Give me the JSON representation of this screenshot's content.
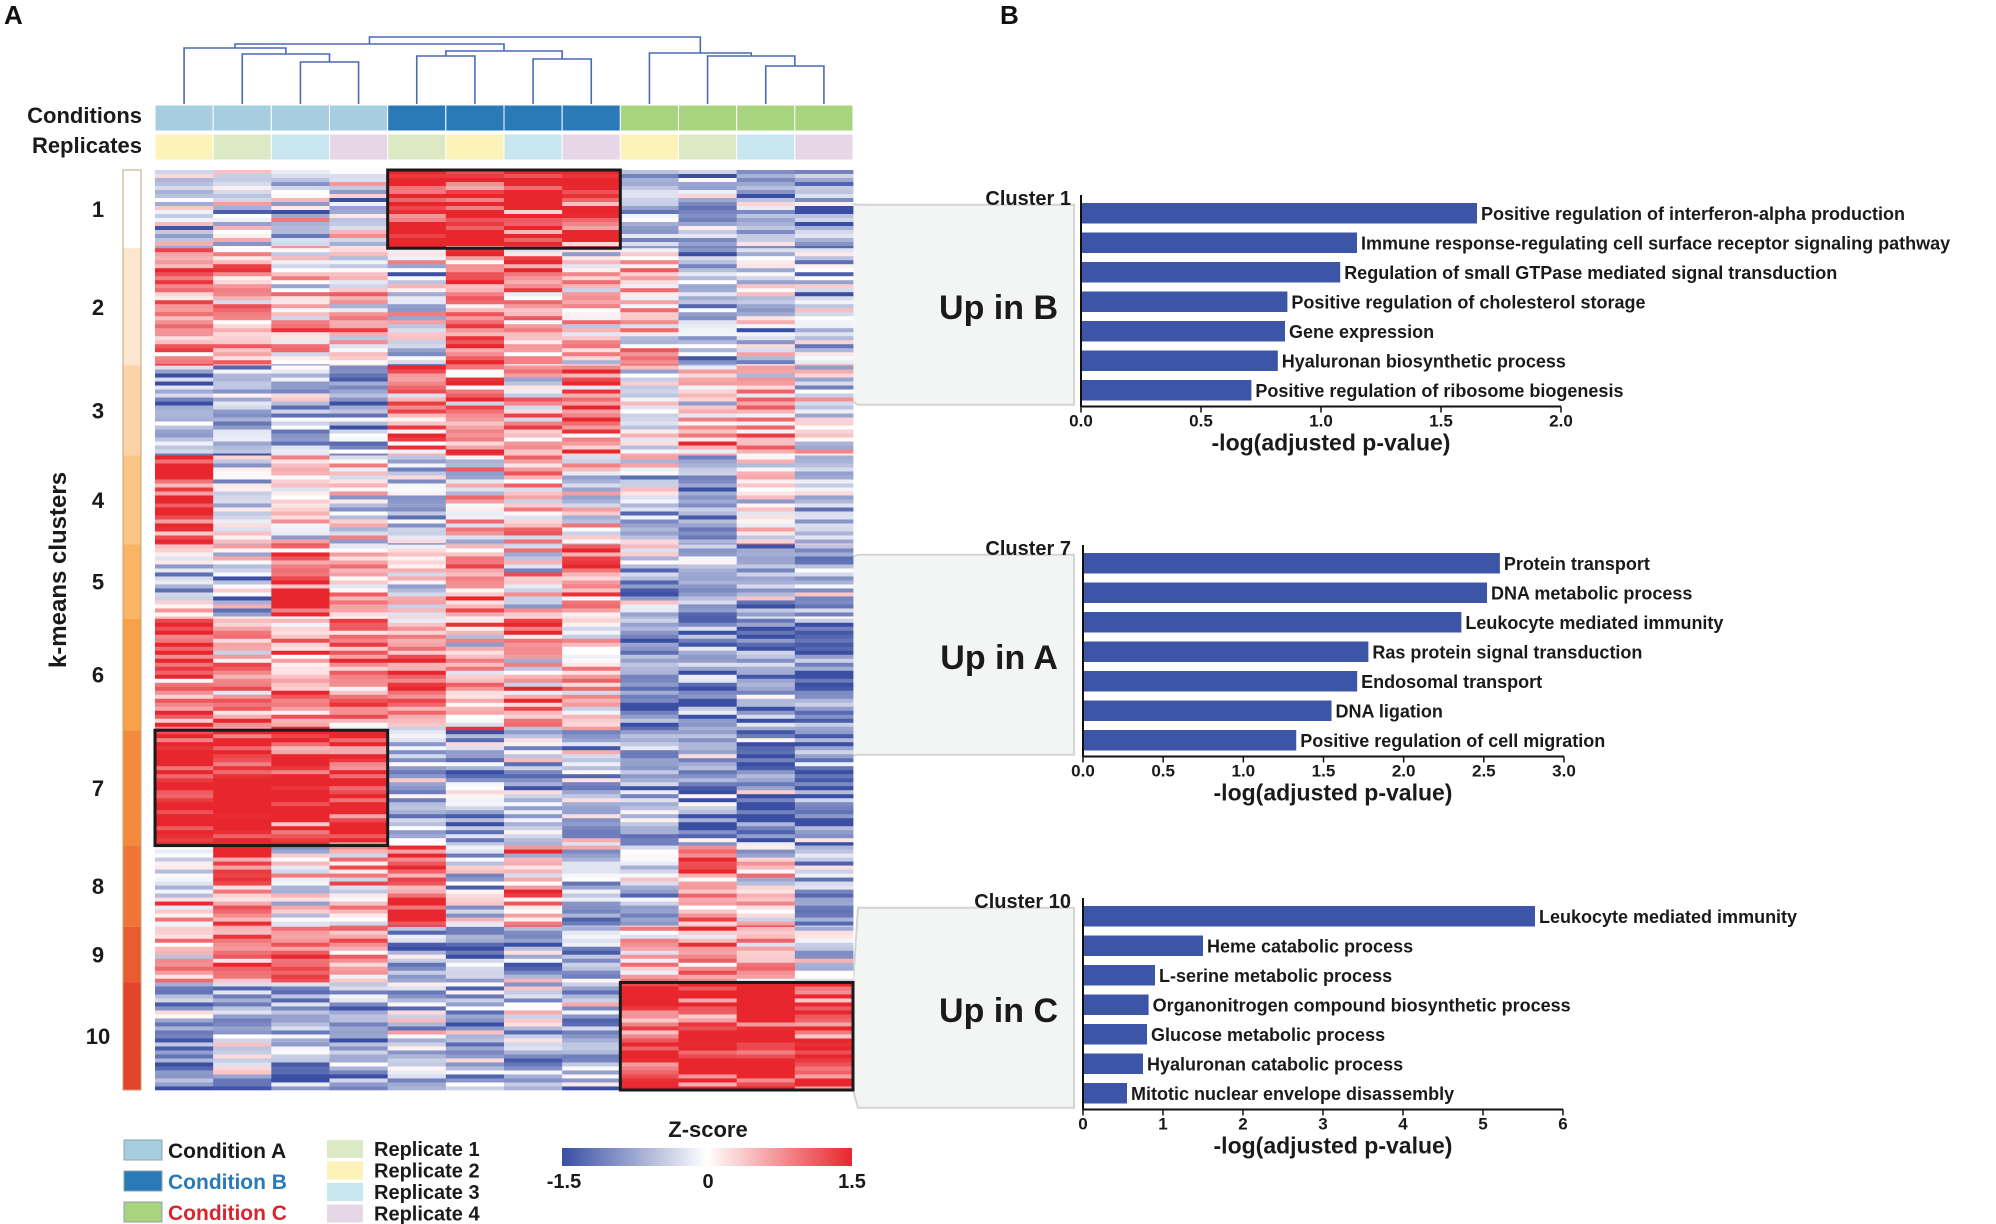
{
  "panels": {
    "a": "A",
    "b": "B"
  },
  "heatmap": {
    "conditions_label": "Conditions",
    "replicates_label": "Replicates",
    "y_axis_label": "k-means clusters",
    "cluster_labels": [
      "1",
      "2",
      "3",
      "4",
      "5",
      "6",
      "7",
      "8",
      "9",
      "10"
    ],
    "cluster_relative_heights": [
      80,
      120,
      92,
      91,
      76,
      114,
      118,
      83,
      57,
      110
    ],
    "cluster_colors": [
      "#ffffff",
      "#fde6cf",
      "#fcd3a7",
      "#fbc586",
      "#f9b464",
      "#f7a248",
      "#f28c3c",
      "#ee7537",
      "#e95c31",
      "#e3442b"
    ],
    "column_conditions": [
      "A",
      "A",
      "A",
      "A",
      "B",
      "B",
      "B",
      "B",
      "C",
      "C",
      "C",
      "C"
    ],
    "column_replicates": [
      2,
      1,
      3,
      4,
      1,
      2,
      3,
      4,
      2,
      1,
      3,
      4
    ],
    "cluster_pattern": [
      [
        -0.3,
        -0.3,
        -0.3,
        -0.3,
        1.0,
        1.0,
        1.0,
        1.0,
        -0.4,
        -0.4,
        -0.4,
        -0.5
      ],
      [
        0.7,
        0.3,
        0.1,
        0.4,
        -0.2,
        0.6,
        0.4,
        0.3,
        0.3,
        -0.3,
        -0.2,
        -0.3
      ],
      [
        -0.4,
        -0.5,
        -0.3,
        -0.5,
        0.4,
        0.5,
        0.3,
        0.5,
        -0.1,
        0.3,
        0.2,
        -0.2
      ],
      [
        0.9,
        -0.2,
        0.3,
        0.0,
        -0.3,
        0.0,
        0.3,
        -0.1,
        -0.3,
        -0.6,
        0.1,
        -0.3
      ],
      [
        -0.2,
        -0.3,
        0.8,
        0.4,
        0.1,
        0.4,
        0.0,
        0.7,
        -0.3,
        -0.4,
        -0.4,
        -0.5
      ],
      [
        0.7,
        0.4,
        0.4,
        0.6,
        0.6,
        0.3,
        0.4,
        0.3,
        -0.6,
        -0.7,
        -0.6,
        -0.7
      ],
      [
        1.0,
        1.0,
        1.0,
        0.9,
        -0.3,
        -0.4,
        -0.3,
        -0.4,
        -0.5,
        -0.6,
        -0.6,
        -0.6
      ],
      [
        0.1,
        0.8,
        -0.2,
        0.3,
        0.8,
        -0.1,
        0.3,
        -0.2,
        -0.2,
        0.6,
        0.1,
        -0.3
      ],
      [
        0.5,
        0.5,
        0.7,
        0.4,
        -0.4,
        -0.5,
        -0.4,
        -0.6,
        0.3,
        0.4,
        0.3,
        -0.2
      ],
      [
        -0.5,
        -0.5,
        -0.5,
        -0.5,
        -0.4,
        -0.4,
        -0.4,
        -0.5,
        1.0,
        1.0,
        1.0,
        0.9
      ]
    ],
    "highlight_boxes": [
      {
        "cluster": 1,
        "group": "B"
      },
      {
        "cluster": 7,
        "group": "A"
      },
      {
        "cluster": 10,
        "group": "C"
      }
    ]
  },
  "legend": {
    "conditions": [
      {
        "label": "Condition A",
        "color": "#a6cde0",
        "text_color": "#1a1a1a"
      },
      {
        "label": "Condition B",
        "color": "#2a7ab8",
        "text_color": "#2a7ab8"
      },
      {
        "label": "Condition C",
        "color": "#a9d47f",
        "text_color": "#d7262d"
      }
    ],
    "replicates": [
      {
        "label": "Replicate 1",
        "color": "#dbe9c4"
      },
      {
        "label": "Replicate 2",
        "color": "#fcf3b9"
      },
      {
        "label": "Replicate 3",
        "color": "#c7e6f0"
      },
      {
        "label": "Replicate 4",
        "color": "#e6d6e6"
      }
    ]
  },
  "colorbar": {
    "title": "Z-score",
    "min": -1.5,
    "mid": 0,
    "max": 1.5,
    "tick_labels": [
      "-1.5",
      "0",
      "1.5"
    ],
    "colors": [
      "#3a4fa3",
      "#ffffff",
      "#e8262d"
    ]
  },
  "colors": {
    "bar": "#3d55a6",
    "dendrogram": "#4a69b9",
    "callout_fill": "#f3f4f4",
    "callout_stroke": "#d4d4d4",
    "box_stroke": "#1a1a1a"
  },
  "chart_data": [
    {
      "type": "bar",
      "orientation": "horizontal",
      "title": "Cluster 1",
      "group_label": "Up in B",
      "source_cluster": 1,
      "categories": [
        "Positive regulation of interferon-alpha production",
        "Immune response-regulating cell surface receptor signaling pathway",
        "Regulation of small GTPase mediated signal transduction",
        "Positive regulation of cholesterol storage",
        "Gene expression",
        "Hyaluronan biosynthetic process",
        "Positive regulation of ribosome biogenesis"
      ],
      "values": [
        1.65,
        1.15,
        1.08,
        0.86,
        0.85,
        0.82,
        0.71
      ],
      "xlabel": "-log(adjusted p-value)",
      "xlim": [
        0,
        2.0
      ],
      "xticks": [
        0.0,
        0.5,
        1.0,
        1.5,
        2.0
      ],
      "xtick_labels": [
        "0.0",
        "0.5",
        "1.0",
        "1.5",
        "2.0"
      ]
    },
    {
      "type": "bar",
      "orientation": "horizontal",
      "title": "Cluster 7",
      "group_label": "Up in A",
      "source_cluster": 7,
      "categories": [
        "Protein transport",
        "DNA metabolic process",
        "Leukocyte mediated immunity",
        "Ras protein signal transduction",
        "Endosomal transport",
        "DNA ligation",
        "Positive regulation of cell migration"
      ],
      "values": [
        2.6,
        2.52,
        2.36,
        1.78,
        1.71,
        1.55,
        1.33
      ],
      "xlabel": "-log(adjusted p-value)",
      "xlim": [
        0,
        3.0
      ],
      "xticks": [
        0.0,
        0.5,
        1.0,
        1.5,
        2.0,
        2.5,
        3.0
      ],
      "xtick_labels": [
        "0.0",
        "0.5",
        "1.0",
        "1.5",
        "2.0",
        "2.5",
        "3.0"
      ]
    },
    {
      "type": "bar",
      "orientation": "horizontal",
      "title": "Cluster 10",
      "group_label": "Up in C",
      "source_cluster": 10,
      "categories": [
        "Leukocyte mediated immunity",
        "Heme catabolic process",
        "L-serine metabolic process",
        "Organonitrogen compound biosynthetic process",
        "Glucose metabolic process",
        "Hyaluronan catabolic process",
        "Mitotic nuclear envelope disassembly"
      ],
      "values": [
        5.65,
        1.5,
        0.9,
        0.82,
        0.8,
        0.75,
        0.55
      ],
      "xlabel": "-log(adjusted p-value)",
      "xlim": [
        0,
        6
      ],
      "xticks": [
        0,
        1,
        2,
        3,
        4,
        5,
        6
      ],
      "xtick_labels": [
        "0",
        "1",
        "2",
        "3",
        "4",
        "5",
        "6"
      ]
    }
  ]
}
